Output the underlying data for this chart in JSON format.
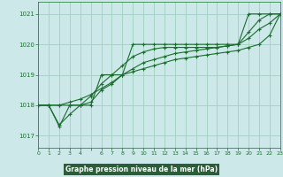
{
  "bg_color": "#cce8e8",
  "plot_bg_color": "#cce8e8",
  "bottom_bar_color": "#1a5c2a",
  "grid_color": "#99ccbb",
  "line_color": "#1a6e2e",
  "marker_color": "#1a6e2e",
  "xlabel": "Graphe pression niveau de la mer (hPa)",
  "xlabel_bg": "#2d6e3e",
  "ylim": [
    1016.6,
    1021.4
  ],
  "xlim": [
    0,
    23
  ],
  "yticks": [
    1017,
    1018,
    1019,
    1020,
    1021
  ],
  "xticks": [
    0,
    1,
    2,
    3,
    4,
    5,
    6,
    7,
    8,
    9,
    10,
    11,
    12,
    13,
    14,
    15,
    16,
    17,
    18,
    19,
    20,
    21,
    22,
    23
  ],
  "xtick_labels": [
    "0",
    "1",
    "2",
    "3",
    "4",
    "",
    "6",
    "7",
    "8",
    "9",
    "10",
    "11",
    "12",
    "13",
    "14",
    "15",
    "16",
    "17",
    "18",
    "19",
    "20",
    "21",
    "22",
    "23"
  ],
  "series": [
    [
      1018.0,
      1018.0,
      1017.3,
      1018.0,
      1018.0,
      1018.0,
      1019.0,
      1019.0,
      1019.0,
      1020.0,
      1020.0,
      1020.0,
      1020.0,
      1020.0,
      1020.0,
      1020.0,
      1020.0,
      1020.0,
      1020.0,
      1020.0,
      1021.0,
      1021.0,
      1021.0,
      1021.0
    ],
    [
      1018.0,
      1018.0,
      1018.0,
      1018.0,
      1018.0,
      1018.1,
      1018.5,
      1018.7,
      1019.0,
      1019.2,
      1019.4,
      1019.5,
      1019.6,
      1019.7,
      1019.75,
      1019.8,
      1019.85,
      1019.9,
      1019.95,
      1020.0,
      1020.2,
      1020.5,
      1020.7,
      1021.0
    ],
    [
      1018.0,
      1018.0,
      1018.0,
      1018.1,
      1018.2,
      1018.35,
      1018.55,
      1018.75,
      1019.0,
      1019.1,
      1019.2,
      1019.3,
      1019.4,
      1019.5,
      1019.55,
      1019.6,
      1019.65,
      1019.7,
      1019.75,
      1019.8,
      1019.9,
      1020.0,
      1020.3,
      1021.0
    ],
    [
      1018.0,
      1018.0,
      1017.35,
      1017.7,
      1018.0,
      1018.3,
      1018.7,
      1019.0,
      1019.3,
      1019.6,
      1019.75,
      1019.85,
      1019.9,
      1019.9,
      1019.9,
      1019.9,
      1019.9,
      1019.9,
      1019.95,
      1020.0,
      1020.4,
      1020.8,
      1021.0,
      1021.0
    ]
  ]
}
